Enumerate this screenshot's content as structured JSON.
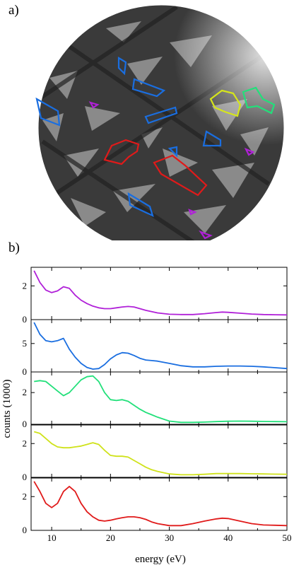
{
  "figure": {
    "panel_a_label": "a)",
    "panel_b_label": "b)"
  },
  "micrograph": {
    "description_free": true,
    "region_colors": [
      "#9b30d9",
      "#1f6fd6",
      "#22e07a",
      "#d6e61a",
      "#e02020"
    ]
  },
  "chart_data": {
    "type": "line",
    "xlabel": "energy (eV)",
    "ylabel": "counts (1000)",
    "xlim": [
      6.5,
      50
    ],
    "xticks": [
      10,
      20,
      30,
      40,
      50
    ],
    "panels": [
      {
        "color": "#b020d8",
        "ylim": [
          0,
          3.1
        ],
        "yticks": [
          0,
          2
        ],
        "x": [
          7,
          8,
          9,
          10,
          11,
          12,
          13,
          14,
          15,
          16,
          17,
          18,
          19,
          20,
          21,
          22,
          23,
          24,
          25,
          26,
          28,
          30,
          32,
          34,
          36,
          38,
          39,
          40,
          42,
          44,
          46,
          48,
          50
        ],
        "y": [
          2.9,
          2.2,
          1.75,
          1.6,
          1.7,
          1.95,
          1.85,
          1.45,
          1.15,
          0.95,
          0.8,
          0.7,
          0.65,
          0.65,
          0.7,
          0.75,
          0.78,
          0.75,
          0.65,
          0.55,
          0.4,
          0.32,
          0.3,
          0.3,
          0.35,
          0.42,
          0.45,
          0.43,
          0.38,
          0.33,
          0.3,
          0.29,
          0.28
        ]
      },
      {
        "color": "#1a6ee0",
        "ylim": [
          0,
          9.2
        ],
        "yticks": [
          0,
          5
        ],
        "x": [
          7,
          8,
          9,
          10,
          11,
          12,
          13,
          14,
          15,
          16,
          17,
          18,
          19,
          20,
          21,
          22,
          23,
          24,
          25,
          26,
          27,
          28,
          30,
          32,
          34,
          36,
          38,
          40,
          42,
          44,
          46,
          48,
          50
        ],
        "y": [
          8.7,
          6.6,
          5.5,
          5.3,
          5.5,
          5.9,
          4.0,
          2.6,
          1.5,
          0.8,
          0.5,
          0.6,
          1.3,
          2.3,
          3.0,
          3.4,
          3.3,
          2.9,
          2.4,
          2.1,
          2.0,
          1.9,
          1.5,
          1.1,
          0.9,
          0.9,
          1.0,
          1.05,
          1.05,
          1.0,
          0.9,
          0.75,
          0.6
        ]
      },
      {
        "color": "#22e07a",
        "ylim": [
          0,
          3.3
        ],
        "yticks": [
          0,
          2
        ],
        "x": [
          7,
          8,
          9,
          10,
          11,
          12,
          13,
          14,
          15,
          16,
          17,
          18,
          19,
          20,
          21,
          22,
          23,
          24,
          25,
          26,
          27,
          28,
          30,
          32,
          34,
          36,
          38,
          40,
          42,
          44,
          46,
          48,
          50
        ],
        "y": [
          2.7,
          2.75,
          2.7,
          2.4,
          2.1,
          1.8,
          2.0,
          2.4,
          2.8,
          3.0,
          3.05,
          2.7,
          2.0,
          1.55,
          1.5,
          1.55,
          1.45,
          1.2,
          0.95,
          0.75,
          0.6,
          0.45,
          0.2,
          0.12,
          0.12,
          0.14,
          0.17,
          0.19,
          0.2,
          0.19,
          0.18,
          0.17,
          0.16
        ]
      },
      {
        "color": "#cfe21a",
        "ylim": [
          0,
          3.1
        ],
        "yticks": [
          0,
          2
        ],
        "x": [
          7,
          8,
          9,
          10,
          11,
          12,
          13,
          14,
          15,
          16,
          17,
          18,
          19,
          20,
          21,
          22,
          23,
          24,
          25,
          26,
          27,
          28,
          30,
          32,
          34,
          36,
          38,
          40,
          42,
          44,
          46,
          48,
          50
        ],
        "y": [
          2.7,
          2.6,
          2.3,
          2.0,
          1.8,
          1.75,
          1.75,
          1.8,
          1.85,
          1.95,
          2.05,
          1.95,
          1.6,
          1.3,
          1.25,
          1.25,
          1.2,
          1.0,
          0.8,
          0.6,
          0.45,
          0.35,
          0.2,
          0.15,
          0.15,
          0.18,
          0.22,
          0.22,
          0.22,
          0.21,
          0.2,
          0.19,
          0.18
        ]
      },
      {
        "color": "#e01a1a",
        "ylim": [
          0,
          3.1
        ],
        "yticks": [
          0,
          2
        ],
        "x": [
          7,
          8,
          9,
          10,
          11,
          12,
          13,
          14,
          15,
          16,
          17,
          18,
          19,
          20,
          21,
          22,
          23,
          24,
          25,
          26,
          27,
          28,
          30,
          32,
          34,
          36,
          38,
          39,
          40,
          42,
          44,
          46,
          48,
          50
        ],
        "y": [
          2.9,
          2.3,
          1.6,
          1.35,
          1.6,
          2.3,
          2.6,
          2.3,
          1.6,
          1.1,
          0.8,
          0.6,
          0.55,
          0.6,
          0.68,
          0.75,
          0.8,
          0.8,
          0.75,
          0.65,
          0.5,
          0.4,
          0.28,
          0.28,
          0.4,
          0.55,
          0.68,
          0.72,
          0.7,
          0.55,
          0.4,
          0.32,
          0.3,
          0.28
        ]
      }
    ]
  }
}
